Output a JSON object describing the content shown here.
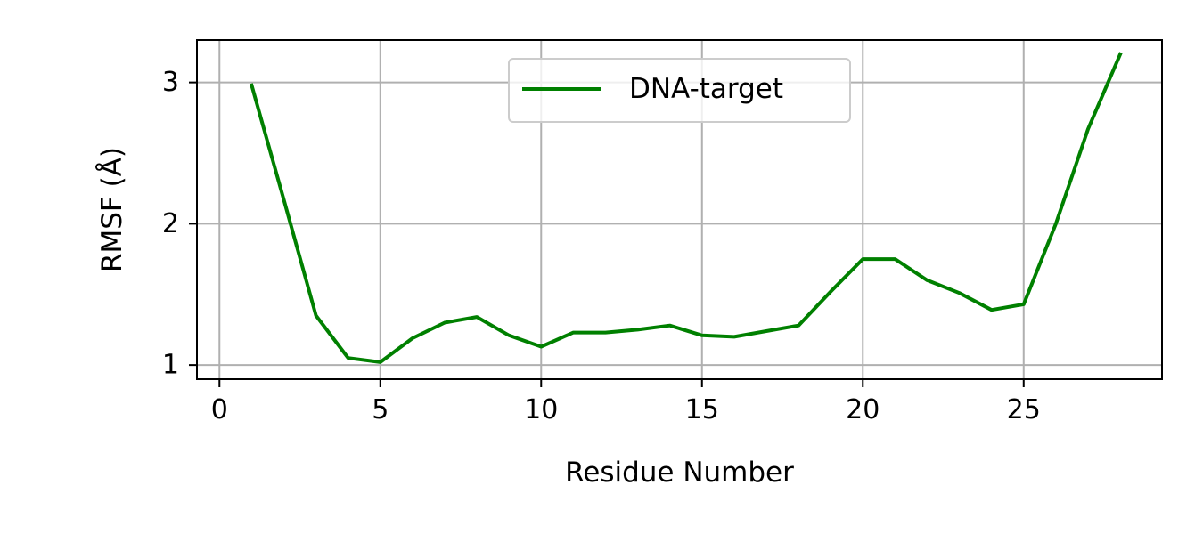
{
  "chart_data": {
    "type": "line",
    "xlabel": "Residue Number",
    "ylabel": "RMSF (Å)",
    "xlim": [
      -0.7,
      29.3
    ],
    "ylim": [
      0.9,
      3.3
    ],
    "xticks": [
      0,
      5,
      10,
      15,
      20,
      25
    ],
    "yticks": [
      1,
      2,
      3
    ],
    "grid": true,
    "legend_position": "top-center",
    "series": [
      {
        "name": "DNA-target",
        "color": "#008000",
        "x": [
          1,
          2,
          3,
          4,
          5,
          6,
          7,
          8,
          9,
          10,
          11,
          12,
          13,
          14,
          15,
          16,
          17,
          18,
          19,
          20,
          21,
          22,
          23,
          24,
          25,
          26,
          27,
          28
        ],
        "y": [
          2.98,
          2.17,
          1.35,
          1.05,
          1.02,
          1.19,
          1.3,
          1.34,
          1.21,
          1.13,
          1.23,
          1.23,
          1.25,
          1.28,
          1.21,
          1.2,
          1.24,
          1.28,
          1.52,
          1.75,
          1.75,
          1.6,
          1.51,
          1.39,
          1.43,
          2.0,
          2.67,
          3.2
        ]
      }
    ]
  }
}
